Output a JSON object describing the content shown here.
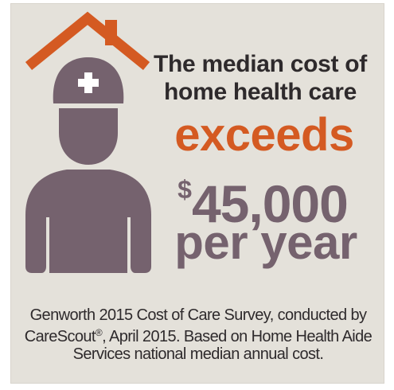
{
  "colors": {
    "background": "#e4e1da",
    "accent_orange": "#d45a22",
    "accent_mauve": "#75626e",
    "text_dark": "#2e2a2c"
  },
  "icons": [
    "house-roof-icon",
    "nurse-icon",
    "medical-cross-icon"
  ],
  "headline": {
    "line1": "The median cost of",
    "line2": "home health care"
  },
  "exceeds": "exceeds",
  "amount": {
    "currency": "$",
    "value": "45,000"
  },
  "per_year": "per year",
  "source": {
    "line1": "Genworth 2015 Cost of Care Survey, conducted by",
    "line2_part1": "CareScout",
    "line2_reg": "®",
    "line2_part2": ", April 2015. Based on Home Health Aide",
    "line3": "Services national median annual cost."
  }
}
